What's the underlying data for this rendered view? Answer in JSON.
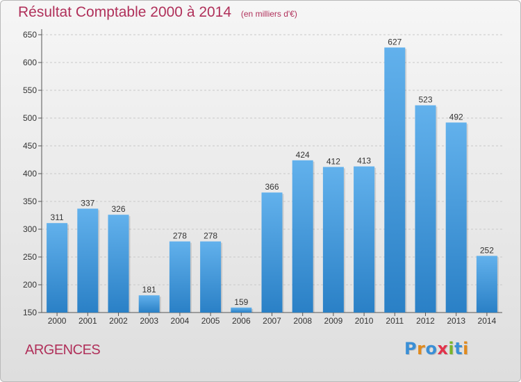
{
  "title": "Résultat Comptable 2000 à 2014",
  "subtitle": "(en milliers d'€)",
  "city": "ARGENCES",
  "logo": {
    "letters": [
      "P",
      "r",
      "o",
      "x",
      "i",
      "t",
      "i"
    ],
    "colors": [
      "#3a8fd6",
      "#e08a1e",
      "#3a8fd6",
      "#e2334b",
      "#7ab42a",
      "#3a8fd6",
      "#e08a1e"
    ]
  },
  "colors": {
    "title": "#b0305a",
    "bar_top": "#62b1ec",
    "bar_bottom": "#2a80c6",
    "axis": "#555555",
    "grid": "#c8c8c8"
  },
  "chart_data": {
    "type": "bar",
    "categories": [
      "2000",
      "2001",
      "2002",
      "2003",
      "2004",
      "2005",
      "2006",
      "2007",
      "2008",
      "2009",
      "2010",
      "2011",
      "2012",
      "2013",
      "2014"
    ],
    "values": [
      311,
      337,
      326,
      181,
      278,
      278,
      159,
      366,
      424,
      412,
      413,
      627,
      523,
      492,
      252
    ],
    "ylim": [
      150,
      650
    ],
    "yticks": [
      150,
      200,
      250,
      300,
      350,
      400,
      450,
      500,
      550,
      600,
      650
    ],
    "grid": true,
    "data_labels": true
  }
}
